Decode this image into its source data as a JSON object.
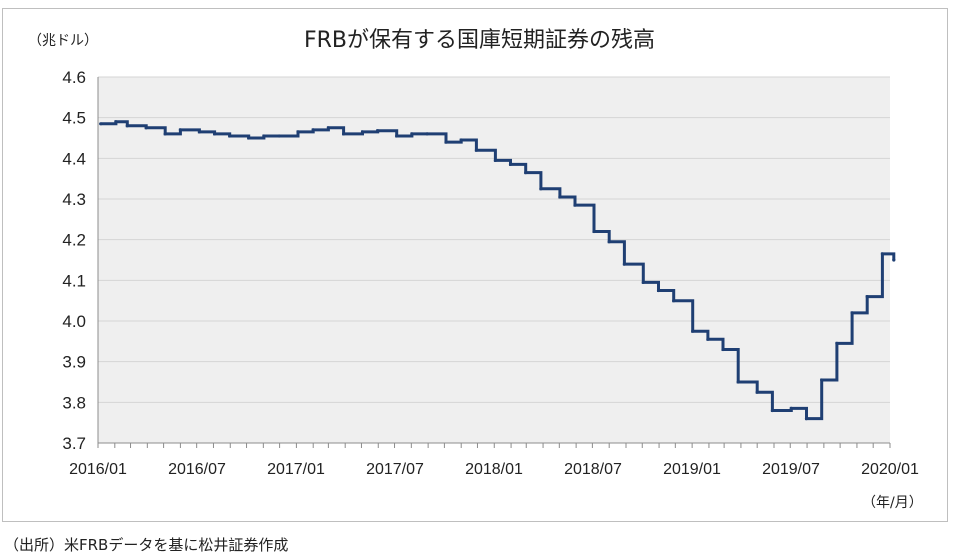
{
  "chart_data": {
    "type": "line",
    "title": "FRBが保有する国庫短期証券の残高",
    "ylabel": "（兆ドル）",
    "xlabel": "（年/月）",
    "ylim": [
      3.7,
      4.6
    ],
    "yticks": [
      "3.7",
      "3.8",
      "3.9",
      "4.0",
      "4.1",
      "4.2",
      "4.3",
      "4.4",
      "4.5",
      "4.6"
    ],
    "xtick_labels": [
      "2016/01",
      "2016/07",
      "2017/01",
      "2017/07",
      "2018/01",
      "2018/07",
      "2019/01",
      "2019/07",
      "2020/01"
    ],
    "grid": true,
    "series": [
      {
        "color": "#1f3f73",
        "x": [
          "2016-01-06",
          "2016-02-03",
          "2016-02-24",
          "2016-03-30",
          "2016-05-04",
          "2016-06-01",
          "2016-07-06",
          "2016-08-03",
          "2016-08-31",
          "2016-10-05",
          "2016-11-02",
          "2016-11-30",
          "2017-01-04",
          "2017-02-01",
          "2017-03-01",
          "2017-03-29",
          "2017-05-03",
          "2017-05-31",
          "2017-07-05",
          "2017-08-02",
          "2017-08-30",
          "2017-10-04",
          "2017-11-01",
          "2017-11-29",
          "2018-01-03",
          "2018-01-31",
          "2018-02-28",
          "2018-03-28",
          "2018-05-02",
          "2018-05-30",
          "2018-07-04",
          "2018-08-01",
          "2018-08-29",
          "2018-10-03",
          "2018-10-31",
          "2018-11-28",
          "2019-01-02",
          "2019-01-30",
          "2019-02-27",
          "2019-03-27",
          "2019-05-01",
          "2019-05-29",
          "2019-07-03",
          "2019-07-31",
          "2019-08-28",
          "2019-09-25",
          "2019-10-23",
          "2019-11-20",
          "2019-12-18",
          "2020-01-08"
        ],
        "y": [
          4.485,
          4.49,
          4.48,
          4.475,
          4.46,
          4.47,
          4.465,
          4.46,
          4.455,
          4.45,
          4.455,
          4.455,
          4.465,
          4.47,
          4.475,
          4.46,
          4.465,
          4.468,
          4.455,
          4.46,
          4.46,
          4.44,
          4.445,
          4.42,
          4.395,
          4.385,
          4.365,
          4.325,
          4.305,
          4.285,
          4.22,
          4.195,
          4.14,
          4.095,
          4.075,
          4.05,
          3.975,
          3.955,
          3.93,
          3.85,
          3.825,
          3.78,
          3.785,
          3.76,
          3.855,
          3.945,
          4.02,
          4.06,
          4.165,
          4.15
        ]
      }
    ]
  },
  "source": "（出所）米FRBデータを基に松井証券作成"
}
